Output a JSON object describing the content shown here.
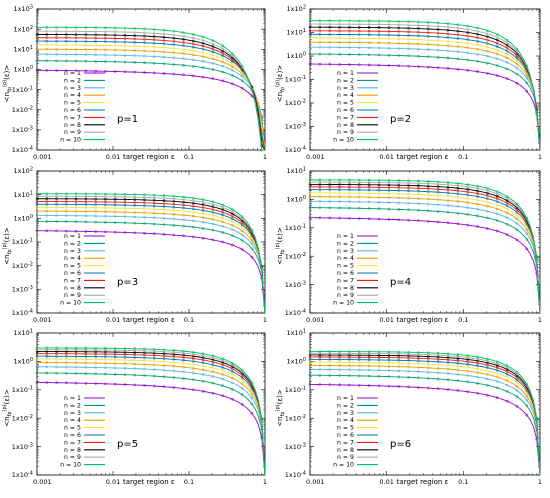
{
  "series_colors": [
    "#9400d3",
    "#009e73",
    "#56b4e9",
    "#e69f00",
    "#f0e442",
    "#0072b2",
    "#e51e10",
    "#000000",
    "#a9a9a9",
    "#00c060"
  ],
  "series_labels": [
    "n = 1",
    "n = 2",
    "n = 3",
    "n = 4",
    "n = 5",
    "n = 6",
    "n = 7",
    "n = 8",
    "n = 9",
    "n = 10"
  ],
  "chart_data": [
    {
      "type": "line",
      "panel_label": "p=1",
      "xlabel": "target region ε",
      "ylabel": "<n_{fp}^{(p)}(ε)>",
      "xscale": "log",
      "yscale": "log",
      "xlim": [
        0.001,
        1
      ],
      "ylim": [
        0.0001,
        1000
      ],
      "x_ticks": [
        "0.001",
        "0.01",
        "0.1",
        "1"
      ],
      "y_ticks": [
        "1x10^-4",
        "1x10^-3",
        "1x10^-2",
        "1x10^-1",
        "1x10^0",
        "1x10^1",
        "1x10^2",
        "1x10^3"
      ],
      "legend_position": "bottom-left",
      "grid": false,
      "series_plateau_values": [
        1.0,
        2.9,
        6.0,
        10.5,
        17,
        26,
        38,
        55,
        80,
        125
      ]
    },
    {
      "type": "line",
      "panel_label": "p=2",
      "xlabel": "target region ε",
      "ylabel": "<n_{fp}^{(p)}(ε)>",
      "xscale": "log",
      "yscale": "log",
      "xlim": [
        0.001,
        1
      ],
      "ylim": [
        0.0001,
        100
      ],
      "x_ticks": [
        "0.001",
        "0.01",
        "0.1",
        "1"
      ],
      "y_ticks": [
        "1x10^-4",
        "1x10^-3",
        "1x10^-2",
        "1x10^-1",
        "1x10^0",
        "1x10^1",
        "1x10^2"
      ],
      "legend_position": "bottom-left",
      "grid": false,
      "series_plateau_values": [
        0.5,
        1.3,
        2.5,
        4.0,
        6.0,
        8.5,
        12,
        17,
        23,
        32
      ]
    },
    {
      "type": "line",
      "panel_label": "p=3",
      "xlabel": "target region ε",
      "ylabel": "<n_{fp}^{(p)}(ε)>",
      "xscale": "log",
      "yscale": "log",
      "xlim": [
        0.001,
        1
      ],
      "ylim": [
        0.0001,
        100
      ],
      "x_ticks": [
        "0.001",
        "0.01",
        "0.1",
        "1"
      ],
      "y_ticks": [
        "1x10^-4",
        "1x10^-3",
        "1x10^-2",
        "1x10^-1",
        "1x10^0",
        "1x10^1",
        "1x10^2"
      ],
      "legend_position": "bottom-left",
      "grid": false,
      "series_plateau_values": [
        0.33,
        0.8,
        1.4,
        2.1,
        3.0,
        4.0,
        5.2,
        6.8,
        8.6,
        11
      ]
    },
    {
      "type": "line",
      "panel_label": "p=4",
      "xlabel": "target region ε",
      "ylabel": "<n_{fp}^{(p)}(ε)>",
      "xscale": "log",
      "yscale": "log",
      "xlim": [
        0.001,
        1
      ],
      "ylim": [
        0.0001,
        10
      ],
      "x_ticks": [
        "0.001",
        "0.01",
        "0.1",
        "1"
      ],
      "y_ticks": [
        "1x10^-4",
        "1x10^-3",
        "1x10^-2",
        "1x10^-1",
        "1x10^0",
        "1x10^1"
      ],
      "legend_position": "bottom-left",
      "grid": false,
      "series_plateau_values": [
        0.25,
        0.55,
        0.9,
        1.3,
        1.75,
        2.25,
        2.8,
        3.4,
        4.1,
        4.9
      ]
    },
    {
      "type": "line",
      "panel_label": "p=5",
      "xlabel": "target region ε",
      "ylabel": "<n_{fp}^{(p)}(ε)>",
      "xscale": "log",
      "yscale": "log",
      "xlim": [
        0.001,
        1
      ],
      "ylim": [
        0.0001,
        10
      ],
      "x_ticks": [
        "0.001",
        "0.01",
        "0.1",
        "1"
      ],
      "y_ticks": [
        "1x10^-4",
        "1x10^-3",
        "1x10^-2",
        "1x10^-1",
        "1x10^0",
        "1x10^1"
      ],
      "legend_position": "bottom-left",
      "grid": false,
      "series_plateau_values": [
        0.2,
        0.42,
        0.68,
        0.95,
        1.25,
        1.55,
        1.9,
        2.25,
        2.6,
        3.0
      ]
    },
    {
      "type": "line",
      "panel_label": "p=6",
      "xlabel": "target region ε",
      "ylabel": "<n_{fp}^{(p)}(ε)>",
      "xscale": "log",
      "yscale": "log",
      "xlim": [
        0.001,
        1
      ],
      "ylim": [
        0.0001,
        10
      ],
      "x_ticks": [
        "0.001",
        "0.01",
        "0.1",
        "1"
      ],
      "y_ticks": [
        "1x10^-4",
        "1x10^-3",
        "1x10^-2",
        "1x10^-1",
        "1x10^0",
        "1x10^1"
      ],
      "legend_position": "bottom-left",
      "grid": false,
      "series_plateau_values": [
        0.17,
        0.35,
        0.55,
        0.75,
        0.97,
        1.2,
        1.45,
        1.7,
        1.95,
        2.25
      ]
    }
  ]
}
